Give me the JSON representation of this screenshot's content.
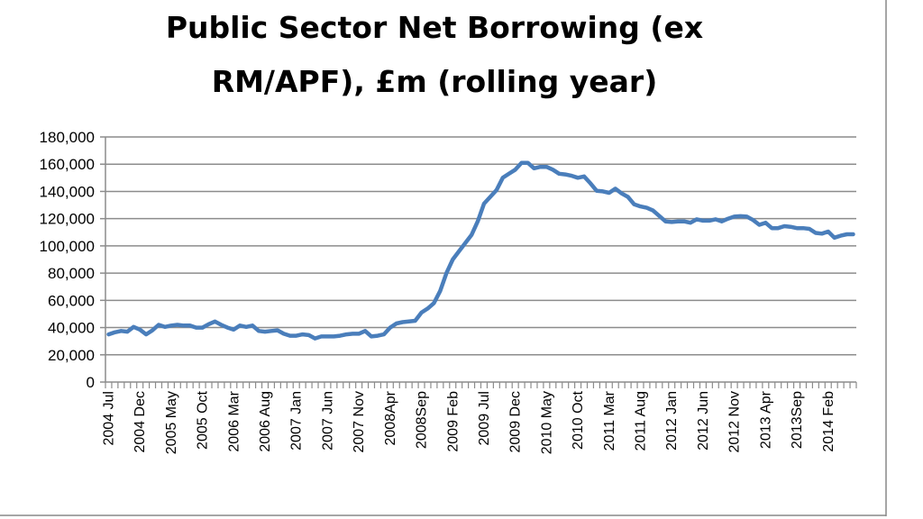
{
  "chart_data": {
    "type": "line",
    "title_lines": [
      "Public Sector Net Borrowing (ex",
      "RM/APF), £m (rolling year)"
    ],
    "xlabel": "",
    "ylabel": "",
    "ylim": [
      0,
      180000
    ],
    "y_ticks": [
      0,
      20000,
      40000,
      60000,
      80000,
      100000,
      120000,
      140000,
      160000,
      180000
    ],
    "y_tick_labels": [
      "0",
      "20,000",
      "40,000",
      "60,000",
      "80,000",
      "100,000",
      "120,000",
      "140,000",
      "160,000",
      "180,000"
    ],
    "x_start": "2004 Jul",
    "x_interval": "monthly",
    "x_tick_every": 5,
    "x_tick_labels": [
      "2004 Jul",
      "2004 Dec",
      "2005 May",
      "2005 Oct",
      "2006 Mar",
      "2006 Aug",
      "2007 Jan",
      "2007 Jun",
      "2007 Nov",
      "2008Apr",
      "2008Sep",
      "2009 Feb",
      "2009 Jul",
      "2009 Dec",
      "2010 May",
      "2010 Oct",
      "2011 Mar",
      "2011 Aug",
      "2012 Jan",
      "2012 Jun",
      "2012 Nov",
      "2013 Apr",
      "2013Sep",
      "2014 Feb"
    ],
    "grid": true,
    "legend": "none",
    "series": [
      {
        "name": "Public Sector Net Borrowing (ex RM/APF), £m (rolling year)",
        "color": "#4a7ebb",
        "values": [
          35000,
          36500,
          37500,
          37000,
          40500,
          38500,
          35000,
          38000,
          42000,
          40500,
          41500,
          42000,
          41500,
          41500,
          40000,
          40000,
          42500,
          44500,
          42000,
          40000,
          38500,
          41500,
          40500,
          41500,
          37500,
          37000,
          37500,
          38000,
          35500,
          34000,
          34000,
          35000,
          34500,
          32000,
          33500,
          33500,
          33500,
          34000,
          35000,
          35500,
          35500,
          37500,
          33500,
          34000,
          35000,
          40000,
          43000,
          44000,
          44500,
          45000,
          51000,
          54000,
          58000,
          67000,
          80000,
          90000,
          96000,
          102000,
          108000,
          118000,
          131000,
          136000,
          141000,
          150000,
          153000,
          156000,
          161000,
          161000,
          157000,
          158000,
          158000,
          156000,
          153000,
          152500,
          151500,
          150000,
          151000,
          146000,
          140500,
          140000,
          139000,
          142000,
          138500,
          136000,
          130500,
          129000,
          128000,
          126000,
          122000,
          118000,
          117500,
          118000,
          118000,
          117000,
          119500,
          118500,
          118500,
          119500,
          118000,
          120000,
          121500,
          121800,
          121500,
          119000,
          115500,
          117000,
          113000,
          113000,
          114500,
          114000,
          113000,
          113000,
          112500,
          109500,
          109000,
          110500,
          106000,
          107500,
          108500,
          108500
        ]
      }
    ]
  }
}
